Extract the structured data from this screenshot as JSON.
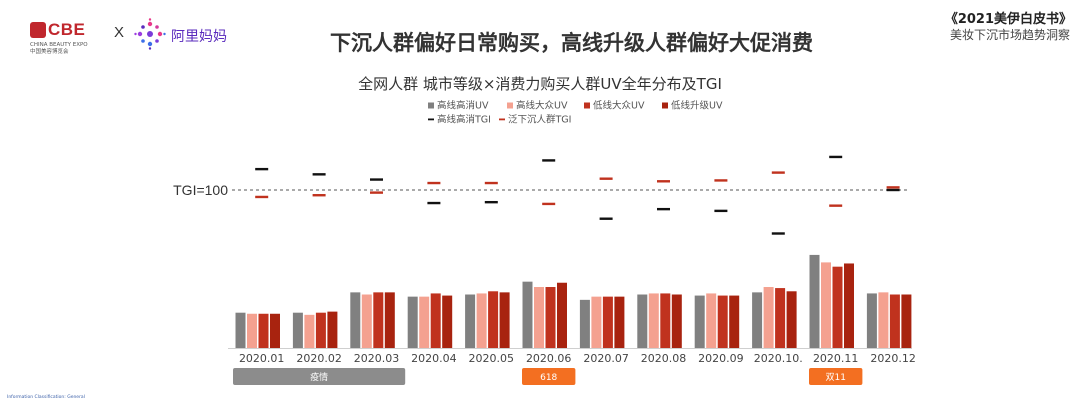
{
  "header": {
    "cbe_logo": "CBE",
    "cbe_logo_sub_en": "CHINA BEAUTY EXPO",
    "cbe_logo_sub_cn": "中国美容博览会",
    "logo_separator": "X",
    "alimama_logo": "阿里妈妈",
    "headline": "下沉人群偏好日常购买，高线升级人群偏好大促消费",
    "report_title": "《2021美伊白皮书》",
    "report_subtitle": "美妆下沉市场趋势洞察"
  },
  "footer": {
    "classification": "Information Classification: General"
  },
  "colors": {
    "series_gray": "#808080",
    "series_pink": "#f4a190",
    "series_red": "#c0321e",
    "series_darkred": "#a8230f",
    "tgi_black": "#111111",
    "tgi_red": "#c0321e",
    "event_gray": "#8c8c8c",
    "event_orange": "#f36f21"
  },
  "chart_data": {
    "type": "bar",
    "title": "全网人群 城市等级×消费力购买人群UV全年分布及TGI",
    "categories": [
      "2020.01",
      "2020.02",
      "2020.03",
      "2020.04",
      "2020.05",
      "2020.06",
      "2020.07",
      "2020.08",
      "2020.09",
      "2020.10.",
      "2020.11",
      "2020.12"
    ],
    "series": [
      {
        "name": "高线高消UV",
        "values": [
          33,
          33,
          52,
          48,
          50,
          62,
          45,
          50,
          49,
          52,
          87,
          51
        ]
      },
      {
        "name": "高线大众UV",
        "values": [
          32,
          31,
          50,
          48,
          51,
          57,
          48,
          51,
          51,
          57,
          80,
          52
        ]
      },
      {
        "name": "低线大众UV",
        "values": [
          32,
          33,
          52,
          51,
          53,
          57,
          48,
          51,
          49,
          56,
          76,
          50
        ]
      },
      {
        "name": "低线升级UV",
        "values": [
          32,
          34,
          52,
          49,
          52,
          61,
          48,
          50,
          49,
          53,
          79,
          50
        ]
      }
    ],
    "lines": [
      {
        "name": "高线高消TGI",
        "values": [
          124,
          118,
          112,
          85,
          86,
          134,
          67,
          78,
          76,
          50,
          138,
          100
        ]
      },
      {
        "name": "泛下沉人群TGI",
        "values": [
          92,
          94,
          97,
          108,
          108,
          84,
          113,
          110,
          111,
          120,
          82,
          103
        ]
      }
    ],
    "tgi_reference": {
      "label": "TGI=100",
      "value": 100
    },
    "events": [
      {
        "label": "疫情",
        "start": 0,
        "end": 2,
        "color": "#8c8c8c"
      },
      {
        "label": "618",
        "start": 5,
        "end": 5,
        "color": "#f36f21"
      },
      {
        "label": "双11",
        "start": 10,
        "end": 10,
        "color": "#f36f21"
      }
    ],
    "legend_position": "top-center",
    "grid": false
  }
}
